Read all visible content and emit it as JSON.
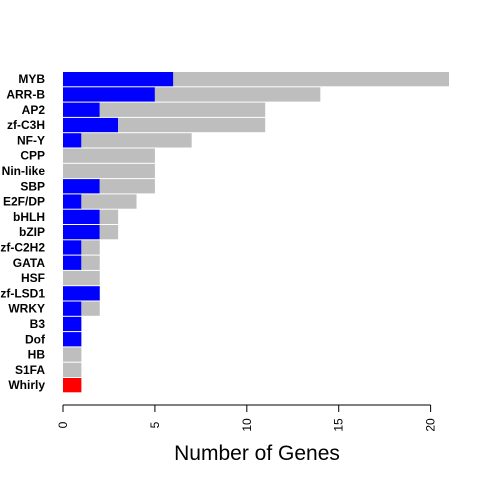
{
  "chart_data": {
    "type": "bar",
    "orientation": "horizontal",
    "stacked": true,
    "title": "",
    "xlabel": "Number of Genes",
    "ylabel": "",
    "xlim": [
      0,
      21
    ],
    "x_ticks": [
      0,
      5,
      10,
      15,
      20
    ],
    "grid": false,
    "legend": "none",
    "categories": [
      "MYB",
      "ARR-B",
      "AP2",
      "zf-C3H",
      "NF-Y",
      "CPP",
      "Nin-like",
      "SBP",
      "E2F/DP",
      "bHLH",
      "bZIP",
      "zf-C2H2",
      "GATA",
      "HSF",
      "zf-LSD1",
      "WRKY",
      "B3",
      "Dof",
      "HB",
      "S1FA",
      "Whirly"
    ],
    "series": [
      {
        "color": "#0000ff",
        "values": [
          6,
          5,
          2,
          3,
          1,
          0,
          0,
          2,
          1,
          2,
          2,
          1,
          1,
          0,
          2,
          1,
          1,
          1,
          0,
          0,
          0
        ]
      },
      {
        "color": "#ff0000",
        "values": [
          0,
          0,
          0,
          0,
          0,
          0,
          0,
          0,
          0,
          0,
          0,
          0,
          0,
          0,
          0,
          0,
          0,
          0,
          0,
          0,
          1
        ]
      },
      {
        "color": "#bebebe",
        "values": [
          15,
          9,
          9,
          8,
          6,
          5,
          5,
          3,
          3,
          1,
          1,
          1,
          1,
          2,
          0,
          1,
          0,
          0,
          1,
          1,
          0
        ]
      }
    ]
  }
}
